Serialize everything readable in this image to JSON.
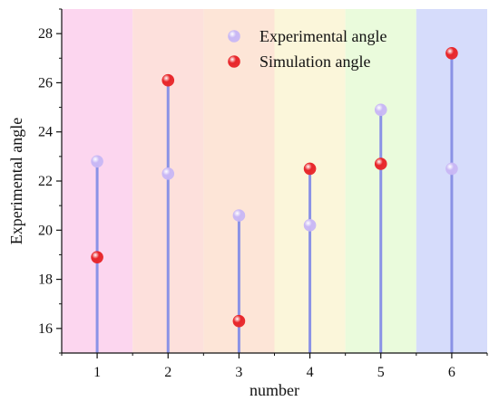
{
  "chart_data": {
    "type": "scatter",
    "xlabel": "number",
    "ylabel": "Experimental angle",
    "categories": [
      "1",
      "2",
      "3",
      "4",
      "5",
      "6"
    ],
    "x": [
      1,
      2,
      3,
      4,
      5,
      6
    ],
    "xlim": [
      0.5,
      6.5
    ],
    "ylim": [
      15,
      29
    ],
    "yticks": [
      16,
      18,
      20,
      22,
      24,
      26,
      28
    ],
    "series": [
      {
        "name": "Experimental angle",
        "color": "#c9b8f5",
        "values": [
          22.8,
          22.3,
          20.6,
          20.2,
          24.9,
          22.5
        ]
      },
      {
        "name": "Simulation angle",
        "color": "#e8262a",
        "values": [
          18.9,
          26.1,
          16.3,
          22.5,
          22.7,
          27.2
        ]
      }
    ],
    "stem_color": "#8a92e6",
    "background_bands": [
      "#fcd6ef",
      "#fde0dc",
      "#fde5d7",
      "#fbf6da",
      "#eafbdc",
      "#d6dcfb"
    ],
    "legend_position": "top-center",
    "grid": false
  }
}
